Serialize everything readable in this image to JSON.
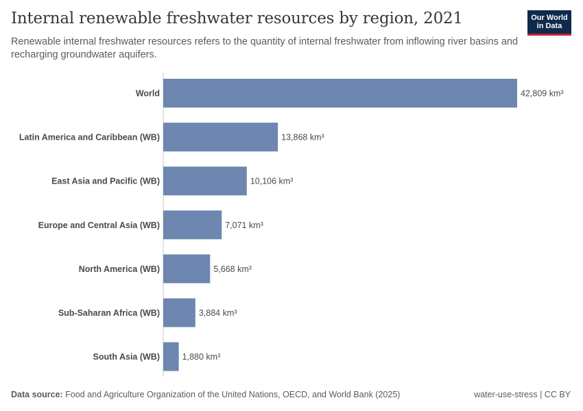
{
  "chart_data": {
    "type": "bar",
    "orientation": "horizontal",
    "title": "Internal renewable freshwater resources by region, 2021",
    "subtitle": "Renewable internal freshwater resources refers to the quantity of internal freshwater from inflowing river basins and recharging groundwater aquifers.",
    "categories": [
      "World",
      "Latin America and Caribbean (WB)",
      "East Asia and Pacific (WB)",
      "Europe and Central Asia (WB)",
      "North America (WB)",
      "Sub-Saharan Africa (WB)",
      "South Asia (WB)"
    ],
    "values": [
      42809,
      13868,
      10106,
      7071,
      5668,
      3884,
      1880
    ],
    "value_labels": [
      "42,809 km³",
      "13,868 km³",
      "10,106 km³",
      "7,071 km³",
      "5,668 km³",
      "3,884 km³",
      "1,880 km³"
    ],
    "unit": "km³",
    "xlim": [
      0,
      42809
    ],
    "bar_color": "#6d87b0"
  },
  "logo": {
    "line1": "Our World",
    "line2": "in Data"
  },
  "footer": {
    "source_label": "Data source:",
    "source_text": "Food and Agriculture Organization of the United Nations, OECD, and World Bank (2025)",
    "right_link": "water-use-stress",
    "right_separator": " | ",
    "license": "CC BY"
  }
}
